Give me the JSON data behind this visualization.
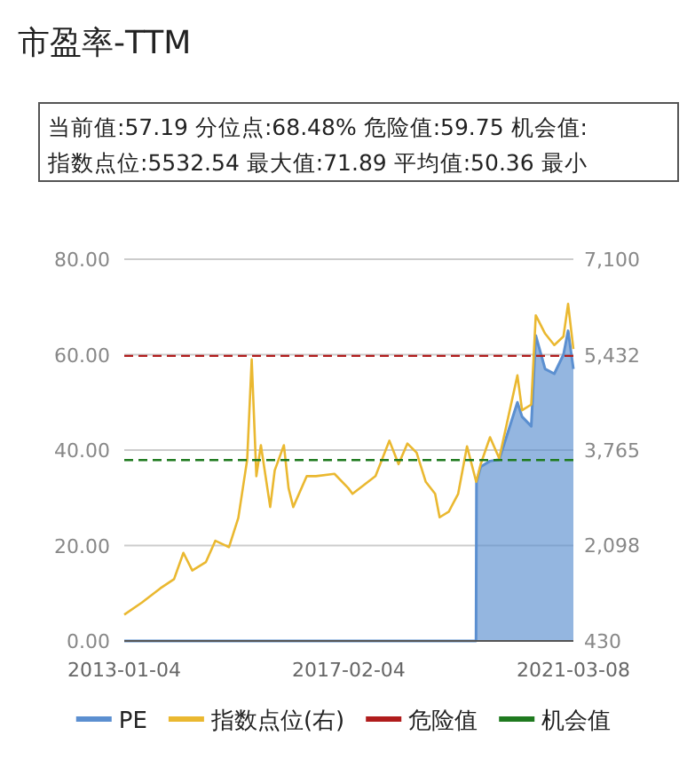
{
  "chart_data": {
    "type": "line",
    "title": "市盈率-TTM",
    "annotations": [
      "当前值:57.19 分位点:68.48% 危险值:59.75 机会值:",
      "指数点位:5532.54 最大值:71.89 平均值:50.36 最小"
    ],
    "xlim": [
      "2013-01-04",
      "2021-03-08"
    ],
    "xticks": [
      "2013-01-04",
      "2017-02-04",
      "2021-03-08"
    ],
    "ylim": [
      0,
      80
    ],
    "yticks": [
      {
        "value": 0,
        "label": "0.00"
      },
      {
        "value": 20,
        "label": "20.00"
      },
      {
        "value": 40,
        "label": "40.00"
      },
      {
        "value": 60,
        "label": "60.00"
      },
      {
        "value": 80,
        "label": "80.00"
      }
    ],
    "y2lim": [
      430,
      7100
    ],
    "y2ticks": [
      430,
      {
        "value": 2098,
        "label": "2,098"
      },
      {
        "value": 3765,
        "label": "3,765"
      },
      {
        "value": 5432,
        "label": "5,432"
      },
      {
        "value": 7100,
        "label": "7,100"
      }
    ],
    "grid": "y",
    "legend": "bottom",
    "series": [
      {
        "name": "PE",
        "type": "area",
        "color": "#5b8fd0",
        "x": [
          "2013-01-04",
          "2019-05-31",
          "2019-06-03",
          "2019-07",
          "2019-09",
          "2019-11",
          "2020-03",
          "2020-04",
          "2020-06",
          "2020-07",
          "2020-09",
          "2020-11",
          "2021-01",
          "2021-02",
          "2021-03-08"
        ],
        "values": [
          0,
          0,
          33.3,
          36.5,
          37.7,
          38,
          50,
          47,
          45,
          64,
          57,
          56,
          60,
          65,
          57
        ]
      },
      {
        "name": "指数点位(右)",
        "axis": "y2",
        "color": "#eab830",
        "x": [
          "2013-01-04",
          "2013-05",
          "2013-09",
          "2013-12",
          "2014-02",
          "2014-04",
          "2014-07",
          "2014-09",
          "2014-12",
          "2015-02",
          "2015-04",
          "2015-05",
          "2015-06",
          "2015-07",
          "2015-09",
          "2015-10",
          "2015-12",
          "2016-01",
          "2016-02",
          "2016-05",
          "2016-07",
          "2016-11",
          "2017-02",
          "2017-03",
          "2017-08",
          "2017-11",
          "2018-01",
          "2018-03",
          "2018-05",
          "2018-07",
          "2018-09",
          "2018-10",
          "2018-12",
          "2019-02",
          "2019-04",
          "2019-06",
          "2019-07",
          "2019-09",
          "2019-11",
          "2020-03",
          "2020-04",
          "2020-06",
          "2020-07",
          "2020-09",
          "2020-11",
          "2021-01",
          "2021-02",
          "2021-03-08"
        ],
        "values": [
          890,
          1100,
          1350,
          1510,
          1970,
          1660,
          1810,
          2180,
          2070,
          2580,
          3600,
          5350,
          3310,
          3850,
          2770,
          3410,
          3850,
          3100,
          2770,
          3310,
          3310,
          3350,
          3100,
          3000,
          3310,
          3930,
          3520,
          3880,
          3720,
          3210,
          3000,
          2590,
          2690,
          3000,
          3830,
          3210,
          3520,
          3990,
          3620,
          5070,
          4460,
          4560,
          6120,
          5800,
          5600,
          5750,
          6320,
          5530
        ]
      }
    ],
    "ref_lines": [
      {
        "axis": "y",
        "value": 59.75,
        "label": "危险值",
        "color": "#b01c1c",
        "line_style": "dashed"
      },
      {
        "axis": "y",
        "value": 37.9,
        "label": "机会值",
        "color": "#1f7a1f",
        "line_style": "dashed"
      }
    ]
  }
}
